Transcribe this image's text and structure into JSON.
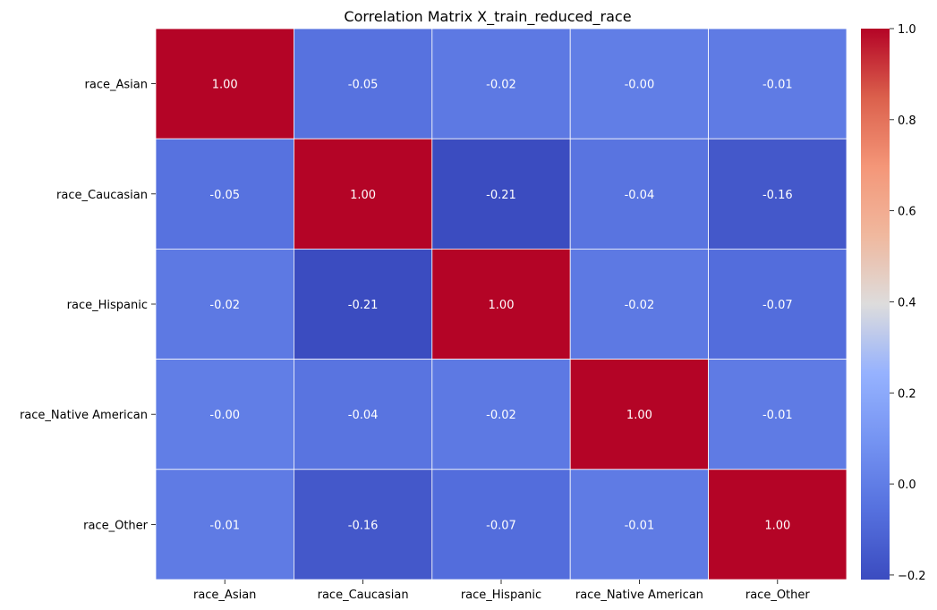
{
  "chart_data": {
    "type": "heatmap",
    "title": "Correlation Matrix X_train_reduced_race",
    "rows": [
      "race_Asian",
      "race_Caucasian",
      "race_Hispanic",
      "race_Native American",
      "race_Other"
    ],
    "columns": [
      "race_Asian",
      "race_Caucasian",
      "race_Hispanic",
      "race_Native American",
      "race_Other"
    ],
    "values": [
      [
        1.0,
        -0.05,
        -0.02,
        -0.0,
        -0.01
      ],
      [
        -0.05,
        1.0,
        -0.21,
        -0.04,
        -0.16
      ],
      [
        -0.02,
        -0.21,
        1.0,
        -0.02,
        -0.07
      ],
      [
        -0.0,
        -0.04,
        -0.02,
        1.0,
        -0.01
      ],
      [
        -0.01,
        -0.16,
        -0.07,
        -0.01,
        1.0
      ]
    ],
    "value_labels": [
      [
        "1.00",
        "-0.05",
        "-0.02",
        "-0.00",
        "-0.01"
      ],
      [
        "-0.05",
        "1.00",
        "-0.21",
        "-0.04",
        "-0.16"
      ],
      [
        "-0.02",
        "-0.21",
        "1.00",
        "-0.02",
        "-0.07"
      ],
      [
        "-0.00",
        "-0.04",
        "-0.02",
        "1.00",
        "-0.01"
      ],
      [
        "-0.01",
        "-0.16",
        "-0.07",
        "-0.01",
        "1.00"
      ]
    ],
    "colorbar": {
      "range": [
        -0.21,
        1.0
      ],
      "ticks": [
        -0.2,
        0.0,
        0.2,
        0.4,
        0.6,
        0.8,
        1.0
      ],
      "tick_labels": [
        "−0.2",
        "0.0",
        "0.2",
        "0.4",
        "0.6",
        "0.8",
        "1.0"
      ],
      "colormap": "coolwarm"
    },
    "grid": true,
    "legend": "right"
  }
}
